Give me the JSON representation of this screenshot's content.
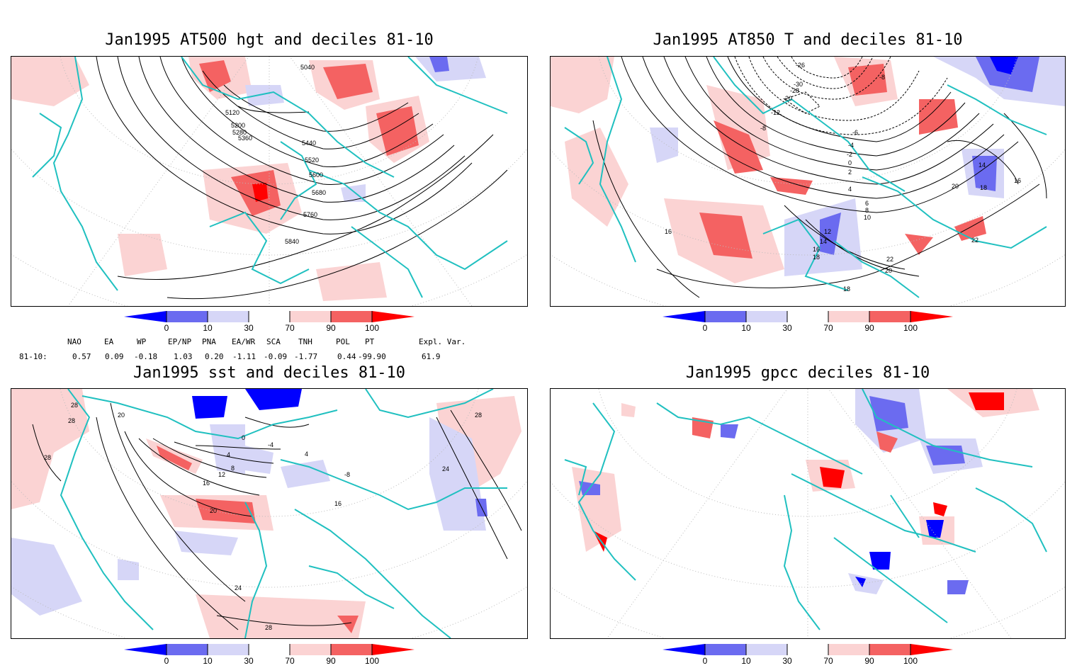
{
  "panels": {
    "tl": {
      "title": "Jan1995 AT500 hgt and deciles 81-10",
      "contour_labels": [
        "5040",
        "5120",
        "5200",
        "5280",
        "5360",
        "5440",
        "5520",
        "5600",
        "5680",
        "5760",
        "5840"
      ]
    },
    "tr": {
      "title": "Jan1995 AT850 T and deciles 81-10",
      "contour_labels": [
        "-26",
        "-30",
        "-28",
        "-20",
        "-12",
        "-8",
        "-6",
        "-4",
        "-2",
        "0",
        "2",
        "4",
        "6",
        "8",
        "10",
        "12",
        "14",
        "16",
        "18",
        "20",
        "22",
        "16",
        "18",
        "14",
        "18",
        "16",
        "20",
        "22",
        "-8"
      ]
    },
    "bl": {
      "title": "Jan1995 sst and deciles 81-10",
      "contour_labels": [
        "28",
        "20",
        "28",
        "28",
        "0",
        "4",
        "8",
        "12",
        "16",
        "20",
        "24",
        "28",
        "-4",
        "4",
        "24",
        "28",
        "-8",
        "16"
      ]
    },
    "br": {
      "title": "Jan1995 gpcc deciles 81-10"
    }
  },
  "colorbar": {
    "tick_labels": [
      "0",
      "10",
      "30",
      "70",
      "90",
      "100"
    ],
    "colors": [
      "#0000ff",
      "#6b6bf0",
      "#d6d6f7",
      "#ffffff",
      "#fbd3d3",
      "#f46262",
      "#ff0000"
    ]
  },
  "indices": {
    "headers": [
      "NAO",
      "EA",
      "WP",
      "EP/NP",
      "PNA",
      "EA/WR",
      "SCA",
      "TNH",
      "POL",
      "PT",
      "Expl. Var."
    ],
    "row_label": "81-10:",
    "values": [
      "0.57",
      "0.09",
      "-0.18",
      "1.03",
      "0.20",
      "-1.11",
      "-0.09",
      "-1.77",
      "0.44",
      "-99.90",
      "61.9"
    ]
  },
  "map_colors": {
    "coast": "#20c0c0",
    "warm": "#f46262",
    "warm_light": "#fbd3d3",
    "cold": "#6b6bf0",
    "cold_light": "#d6d6f7"
  },
  "icons": {
    "colorbar_low_arrow": "triangle-left",
    "colorbar_high_arrow": "triangle-right"
  }
}
